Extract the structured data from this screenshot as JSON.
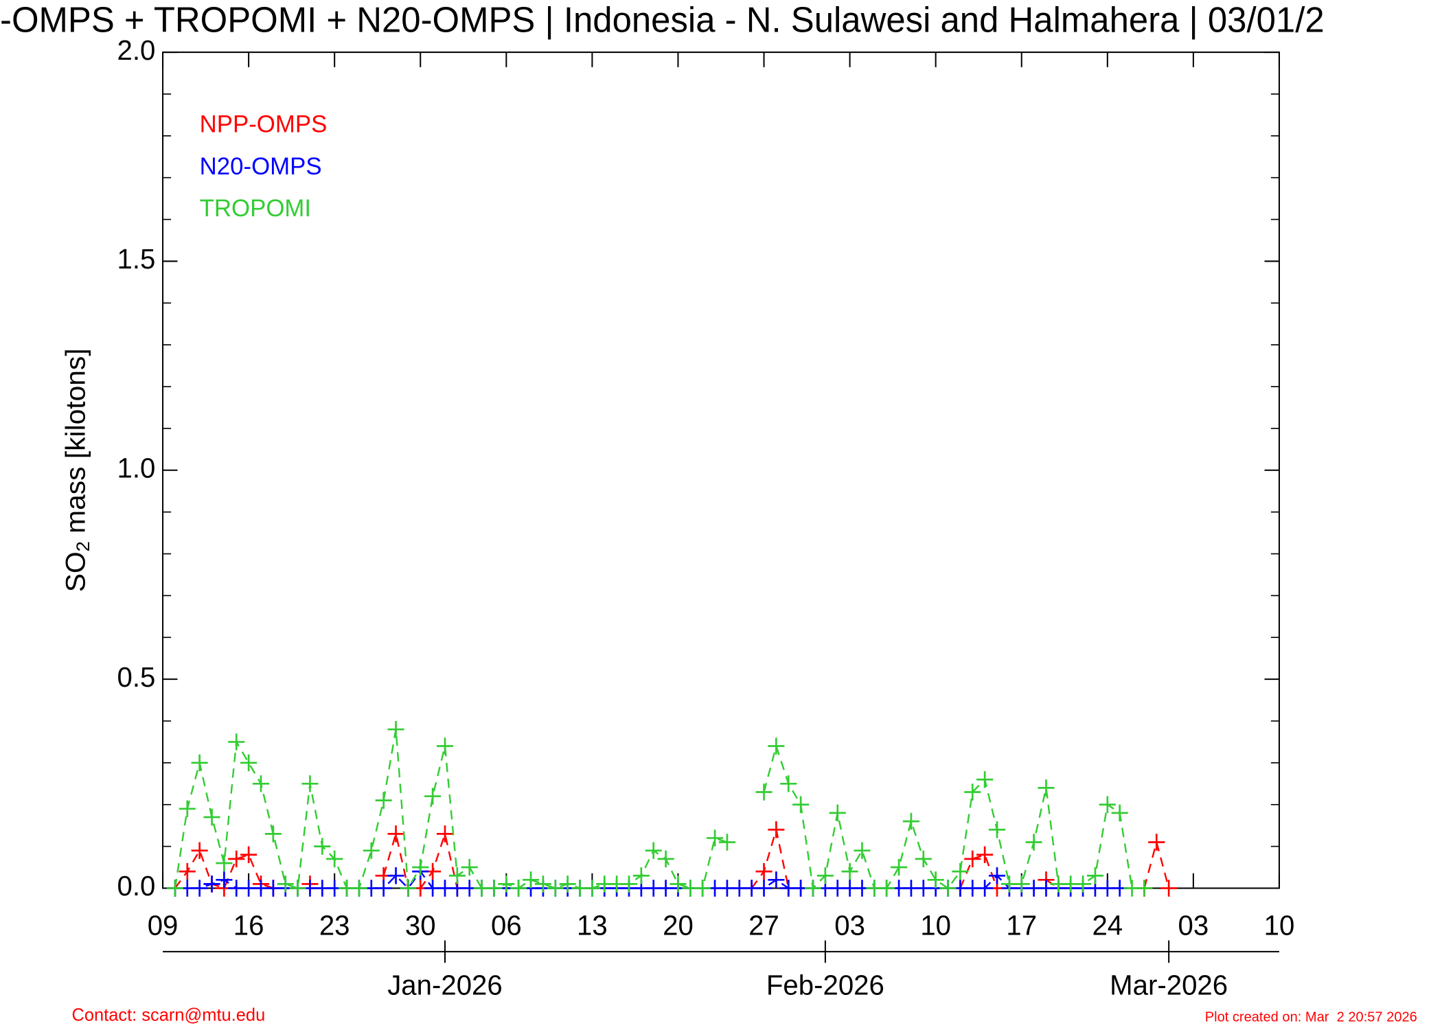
{
  "chart_data": {
    "type": "line",
    "title": "-OMPS + TROPOMI + N20-OMPS | Indonesia - N. Sulawesi and Halmahera | 03/01/2",
    "y_label": {
      "main": "SO",
      "sub": "2",
      "rest": " mass [kilotons]"
    },
    "x": [
      1,
      2,
      3,
      4,
      5,
      6,
      7,
      8,
      9,
      10,
      11,
      12,
      13,
      14,
      15,
      16,
      17,
      18,
      19,
      20,
      21,
      22,
      23,
      24,
      25,
      26,
      27,
      28,
      29,
      30,
      31,
      32,
      33,
      34,
      35,
      36,
      37,
      38,
      39,
      40,
      41,
      42,
      43,
      44,
      45,
      46,
      47,
      48,
      49,
      50,
      51,
      52,
      53,
      54,
      55,
      56,
      57,
      58,
      59,
      60,
      61,
      62,
      63,
      64,
      65,
      66,
      67,
      68,
      69,
      70,
      71,
      72,
      73,
      74,
      75,
      76,
      77,
      78,
      79,
      80,
      81,
      82
    ],
    "xlim": [
      0,
      91
    ],
    "xticks": [
      {
        "value": 0,
        "label": "09"
      },
      {
        "value": 7,
        "label": "16"
      },
      {
        "value": 14,
        "label": "23"
      },
      {
        "value": 21,
        "label": "30"
      },
      {
        "value": 28,
        "label": "06"
      },
      {
        "value": 35,
        "label": "13"
      },
      {
        "value": 42,
        "label": "20"
      },
      {
        "value": 49,
        "label": "27"
      },
      {
        "value": 56,
        "label": "03"
      },
      {
        "value": 63,
        "label": "10"
      },
      {
        "value": 70,
        "label": "17"
      },
      {
        "value": 77,
        "label": "24"
      },
      {
        "value": 84,
        "label": "03"
      },
      {
        "value": 91,
        "label": "10"
      }
    ],
    "month_ticks": [
      {
        "value": 23,
        "label": "Jan-2026"
      },
      {
        "value": 54,
        "label": "Feb-2026"
      },
      {
        "value": 82,
        "label": "Mar-2026"
      }
    ],
    "ylim": [
      0,
      2
    ],
    "yticks": [
      {
        "value": 0,
        "label": "0.0"
      },
      0.5,
      {
        "value": 1,
        "label": "1.0"
      },
      1.5,
      {
        "value": 2,
        "label": "2.0"
      }
    ],
    "series": [
      {
        "name": "NPP-OMPS",
        "color": "#ff0000",
        "values": [
          0,
          0.04,
          0.09,
          0.01,
          0,
          0.07,
          0.08,
          0.01,
          0,
          null,
          null,
          0.01,
          null,
          null,
          null,
          null,
          null,
          0.03,
          0.13,
          0,
          0,
          0.04,
          0.13,
          0,
          null,
          null,
          null,
          null,
          null,
          null,
          null,
          null,
          null,
          null,
          null,
          null,
          null,
          null,
          null,
          null,
          null,
          null,
          null,
          null,
          null,
          null,
          null,
          0,
          0.04,
          0.14,
          0,
          0,
          null,
          null,
          null,
          null,
          null,
          null,
          null,
          null,
          null,
          null,
          null,
          null,
          0,
          0.07,
          0.08,
          0,
          null,
          null,
          null,
          0.02,
          0,
          null,
          null,
          null,
          null,
          null,
          null,
          0,
          0.11,
          0
        ]
      },
      {
        "name": "N20-OMPS",
        "color": "#0000ff",
        "values": [
          0,
          0,
          0,
          0.01,
          0.02,
          0,
          0,
          0,
          0,
          0,
          0,
          0,
          0,
          0,
          0,
          0,
          0,
          0,
          0.03,
          0,
          0.04,
          0,
          0,
          0,
          0,
          0,
          0,
          0,
          0,
          0,
          0,
          0,
          0,
          0,
          0,
          0,
          0,
          0,
          0,
          0,
          0,
          0,
          0,
          0,
          0,
          0,
          0,
          0,
          0,
          0.02,
          0,
          0,
          0,
          0,
          0,
          0,
          0,
          0,
          0,
          0,
          0,
          0,
          0,
          0,
          0,
          0,
          0,
          0.03,
          0,
          0,
          0,
          0,
          0,
          0,
          0,
          0,
          0,
          0,
          null,
          null,
          null,
          null
        ]
      },
      {
        "name": "TROPOMI",
        "color": "#33cc33",
        "values": [
          0,
          0.19,
          0.3,
          0.17,
          0.06,
          0.35,
          0.3,
          0.25,
          0.13,
          0.01,
          0,
          0.25,
          0.1,
          0.07,
          0,
          0,
          0.09,
          0.21,
          0.38,
          0,
          0.05,
          0.22,
          0.34,
          0.03,
          0.05,
          0,
          0,
          0.01,
          0,
          0.02,
          0.01,
          0,
          0.01,
          0,
          0,
          0.01,
          0.01,
          0.01,
          0.03,
          0.09,
          0.07,
          0.01,
          0,
          0,
          0.12,
          0.11,
          null,
          null,
          0.23,
          0.34,
          0.25,
          0.2,
          0,
          0.03,
          0.18,
          0.04,
          0.09,
          0,
          0,
          0.05,
          0.16,
          0.07,
          0.02,
          0,
          0.04,
          0.23,
          0.26,
          0.14,
          0.01,
          0.01,
          0.11,
          0.24,
          0.01,
          0.01,
          0.01,
          0.03,
          0.2,
          0.18,
          0,
          0,
          null,
          null
        ]
      }
    ],
    "legend": "upper left",
    "footer_left": "Contact: scarn@mtu.edu",
    "footer_right": "Plot created on: Mar  2 20:57 2026"
  }
}
